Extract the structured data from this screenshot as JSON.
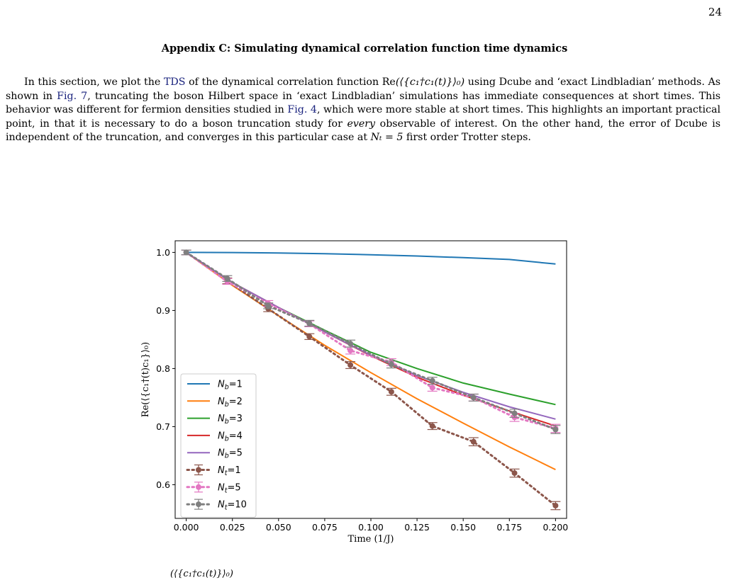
{
  "page": {
    "number": "24"
  },
  "section": {
    "heading": "Appendix C: Simulating dynamical correlation function time dynamics"
  },
  "paragraph": {
    "s1a": "In this section, we plot the ",
    "s1link": "TDS",
    "s1b": " of the dynamical correlation function Re",
    "s1math": "(⟨{c₁†c₁(t)}⟩₀)",
    "s1c": " using Dcube and ‘exact Lindbladian’ methods. As shown in ",
    "s2link": "Fig. 7",
    "s2b": ", truncating the boson Hilbert space in ‘exact Lindbladian’ simulations has immediate consequences at short times. This behavior was different for fermion densities studied in ",
    "s3link": "Fig. 4",
    "s3b": ", which were more stable at short times. This highlights an important practical point, in that it is necessary to do a boson truncation study for ",
    "s3em": "every",
    "s3c": " observable of interest. On the other hand, the error of Dcube is independent of the truncation, and converges in this particular case at ",
    "s4math": "Nₜ = 5",
    "s4b": " first order Trotter steps."
  },
  "caption_fragment": "(⟨{c₁†c₁(t)}⟩₀)",
  "chart_data": {
    "type": "line",
    "xlabel": "Time (1/J)",
    "ylabel": "Re(⟨{c₁†(t)c₁}⟩₀)",
    "xlim": [
      -0.006,
      0.206
    ],
    "ylim": [
      0.542,
      1.02
    ],
    "xticks": [
      "0.000",
      "0.025",
      "0.050",
      "0.075",
      "0.100",
      "0.125",
      "0.150",
      "0.175",
      "0.200"
    ],
    "xtick_values": [
      0,
      0.025,
      0.05,
      0.075,
      0.1,
      0.125,
      0.15,
      0.175,
      0.2
    ],
    "yticks": [
      "0.6",
      "0.7",
      "0.8",
      "0.9",
      "1.0"
    ],
    "ytick_values": [
      0.6,
      0.7,
      0.8,
      0.9,
      1.0
    ],
    "grid": false,
    "legend_position": "lower-left",
    "lines": [
      {
        "label": "N",
        "sub": "b",
        "value": "=1",
        "color": "#1f77b4",
        "x": [
          0,
          0.025,
          0.05,
          0.075,
          0.1,
          0.125,
          0.15,
          0.175,
          0.2
        ],
        "y": [
          1.0,
          0.9997,
          0.999,
          0.9978,
          0.996,
          0.9938,
          0.991,
          0.9878,
          0.98
        ]
      },
      {
        "label": "N",
        "sub": "b",
        "value": "=2",
        "color": "#ff7f0e",
        "x": [
          0,
          0.025,
          0.05,
          0.075,
          0.1,
          0.125,
          0.15,
          0.175,
          0.2
        ],
        "y": [
          1.0,
          0.943,
          0.891,
          0.84,
          0.793,
          0.748,
          0.706,
          0.665,
          0.626
        ]
      },
      {
        "label": "N",
        "sub": "b",
        "value": "=3",
        "color": "#2ca02c",
        "x": [
          0,
          0.025,
          0.05,
          0.075,
          0.1,
          0.125,
          0.15,
          0.175,
          0.2
        ],
        "y": [
          1.0,
          0.948,
          0.905,
          0.866,
          0.828,
          0.8,
          0.775,
          0.756,
          0.738
        ]
      },
      {
        "label": "N",
        "sub": "b",
        "value": "=4",
        "color": "#d62728",
        "x": [
          0,
          0.025,
          0.05,
          0.075,
          0.1,
          0.125,
          0.15,
          0.175,
          0.2
        ],
        "y": [
          1.0,
          0.948,
          0.905,
          0.863,
          0.822,
          0.785,
          0.754,
          0.727,
          0.701
        ]
      },
      {
        "label": "N",
        "sub": "b",
        "value": "=5",
        "color": "#9467bd",
        "x": [
          0,
          0.025,
          0.05,
          0.075,
          0.1,
          0.125,
          0.15,
          0.175,
          0.2
        ],
        "y": [
          1.0,
          0.948,
          0.905,
          0.863,
          0.823,
          0.788,
          0.759,
          0.734,
          0.713
        ]
      }
    ],
    "errorbar_series": [
      {
        "label": "N",
        "sub": "t",
        "value": "=1",
        "color": "#8c564b",
        "x": [
          0,
          0.0222,
          0.0444,
          0.0667,
          0.0889,
          0.1111,
          0.1333,
          0.1556,
          0.1778,
          0.2
        ],
        "y": [
          1.0,
          0.951,
          0.903,
          0.855,
          0.806,
          0.76,
          0.701,
          0.674,
          0.62,
          0.564
        ],
        "err": [
          0.004,
          0.005,
          0.005,
          0.005,
          0.006,
          0.006,
          0.006,
          0.007,
          0.007,
          0.007
        ]
      },
      {
        "label": "N",
        "sub": "t",
        "value": "=5",
        "color": "#e377c2",
        "x": [
          0,
          0.0222,
          0.0444,
          0.0667,
          0.0889,
          0.1111,
          0.1333,
          0.1556,
          0.1778,
          0.2
        ],
        "y": [
          1.0,
          0.95,
          0.912,
          0.877,
          0.831,
          0.811,
          0.767,
          0.75,
          0.716,
          0.697
        ],
        "err": [
          0.004,
          0.005,
          0.005,
          0.005,
          0.006,
          0.006,
          0.006,
          0.006,
          0.007,
          0.007
        ]
      },
      {
        "label": "N",
        "sub": "t",
        "value": "=10",
        "color": "#7f7f7f",
        "x": [
          0,
          0.0222,
          0.0444,
          0.0667,
          0.0889,
          0.1111,
          0.1333,
          0.1556,
          0.1778,
          0.2
        ],
        "y": [
          1.0,
          0.955,
          0.908,
          0.878,
          0.843,
          0.807,
          0.779,
          0.75,
          0.723,
          0.695
        ],
        "err": [
          0.004,
          0.005,
          0.005,
          0.005,
          0.006,
          0.006,
          0.006,
          0.006,
          0.007,
          0.007
        ]
      }
    ]
  }
}
